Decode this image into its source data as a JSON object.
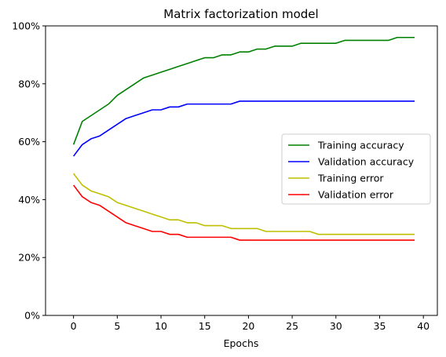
{
  "chart_data": {
    "type": "line",
    "title": "Matrix factorization model",
    "xlabel": "Epochs",
    "ylabel": "",
    "xlim": [
      -3.2,
      41.6
    ],
    "ylim": [
      0,
      100
    ],
    "xticks": [
      0,
      5,
      10,
      15,
      20,
      25,
      30,
      35,
      40
    ],
    "yticks": [
      0,
      20,
      40,
      60,
      80,
      100
    ],
    "ytick_labels": [
      "0%",
      "20%",
      "40%",
      "60%",
      "80%",
      "100%"
    ],
    "grid": false,
    "legend_position": "center-right",
    "x": [
      0,
      1,
      2,
      3,
      4,
      5,
      6,
      7,
      8,
      9,
      10,
      11,
      12,
      13,
      14,
      15,
      16,
      17,
      18,
      19,
      20,
      21,
      22,
      23,
      24,
      25,
      26,
      27,
      28,
      29,
      30,
      31,
      32,
      33,
      34,
      35,
      36,
      37,
      38,
      39
    ],
    "series": [
      {
        "name": "Training accuracy",
        "color": "#008000",
        "values": [
          59,
          67,
          69,
          71,
          73,
          76,
          78,
          80,
          82,
          83,
          84,
          85,
          86,
          87,
          88,
          89,
          89,
          90,
          90,
          91,
          91,
          92,
          92,
          93,
          93,
          93,
          94,
          94,
          94,
          94,
          94,
          95,
          95,
          95,
          95,
          95,
          95,
          96,
          96,
          96
        ]
      },
      {
        "name": "Validation accuracy",
        "color": "#0000ff",
        "values": [
          55,
          59,
          61,
          62,
          64,
          66,
          68,
          69,
          70,
          71,
          71,
          72,
          72,
          73,
          73,
          73,
          73,
          73,
          73,
          74,
          74,
          74,
          74,
          74,
          74,
          74,
          74,
          74,
          74,
          74,
          74,
          74,
          74,
          74,
          74,
          74,
          74,
          74,
          74,
          74
        ]
      },
      {
        "name": "Training error",
        "color": "#bfbf00",
        "values": [
          49,
          45,
          43,
          42,
          41,
          39,
          38,
          37,
          36,
          35,
          34,
          33,
          33,
          32,
          32,
          31,
          31,
          31,
          30,
          30,
          30,
          30,
          29,
          29,
          29,
          29,
          29,
          29,
          28,
          28,
          28,
          28,
          28,
          28,
          28,
          28,
          28,
          28,
          28,
          28
        ]
      },
      {
        "name": "Validation error",
        "color": "#ff0000",
        "values": [
          45,
          41,
          39,
          38,
          36,
          34,
          32,
          31,
          30,
          29,
          29,
          28,
          28,
          27,
          27,
          27,
          27,
          27,
          27,
          26,
          26,
          26,
          26,
          26,
          26,
          26,
          26,
          26,
          26,
          26,
          26,
          26,
          26,
          26,
          26,
          26,
          26,
          26,
          26,
          26
        ]
      }
    ]
  }
}
